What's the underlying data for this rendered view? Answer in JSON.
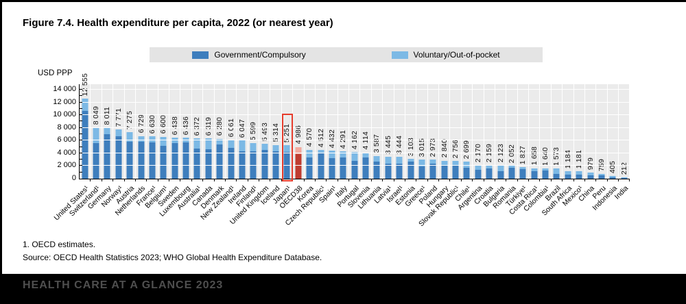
{
  "title": "Figure 7.4. Health expenditure per capita, 2022 (or nearest year)",
  "axis_unit": "USD PPP",
  "footnote": "1. OECD estimates.",
  "source": "Source: OECD Health Statistics 2023; WHO Global Health Expenditure Database.",
  "banner": "HEALTH CARE AT A GLANCE 2023",
  "legend": {
    "items": [
      {
        "label": "Government/Compulsory",
        "color": "#3e7ebd"
      },
      {
        "label": "Voluntary/Out-of-pocket",
        "color": "#7cb9e5"
      }
    ]
  },
  "chart_data": {
    "type": "bar",
    "stacked": true,
    "title": "Health expenditure per capita, 2022 (or nearest year)",
    "ylabel": "USD PPP",
    "ylim": [
      0,
      14500
    ],
    "grid": "horizontal-white-on-gray",
    "legend_position": "top-center",
    "ytick_values": [
      0,
      2000,
      4000,
      6000,
      8000,
      10000,
      12000,
      14000
    ],
    "ytick_labels": [
      "0",
      "2 000",
      "4 000",
      "6 000",
      "8 000",
      "10 000",
      "12 000",
      "14 000"
    ],
    "minor_tick_step": 1000,
    "series": [
      {
        "name": "Government/Compulsory",
        "color": "#3e7ebd"
      },
      {
        "name": "Voluntary/Out-of-pocket",
        "color": "#7cb9e5"
      }
    ],
    "colors": {
      "oecd_gov": "#bf3c30",
      "oecd_vol": "#f2a99e",
      "highlight_box": "#e63c2c"
    },
    "countries": [
      {
        "name": "United States¹",
        "value_label": "12 555",
        "total": 12555,
        "gov": 10630
      },
      {
        "name": "Switzerland¹",
        "value_label": "8 049",
        "total": 8049,
        "gov": 5600
      },
      {
        "name": "Germany",
        "value_label": "8 011",
        "total": 8011,
        "gov": 7040
      },
      {
        "name": "Norway¹",
        "value_label": "7 771",
        "total": 7771,
        "gov": 6680
      },
      {
        "name": "Austria",
        "value_label": "7 275",
        "total": 7275,
        "gov": 5820
      },
      {
        "name": "Netherlands",
        "value_label": "6 729",
        "total": 6729,
        "gov": 5780
      },
      {
        "name": "France¹",
        "value_label": "6 630",
        "total": 6630,
        "gov": 5710
      },
      {
        "name": "Belgium¹",
        "value_label": "6 600",
        "total": 6600,
        "gov": 5170
      },
      {
        "name": "Sweden",
        "value_label": "6 438",
        "total": 6438,
        "gov": 5600
      },
      {
        "name": "Luxembourg",
        "value_label": "6 436",
        "total": 6436,
        "gov": 5670
      },
      {
        "name": "Australia¹",
        "value_label": "6 372",
        "total": 6372,
        "gov": 4740
      },
      {
        "name": "Canada",
        "value_label": "6 319",
        "total": 6319,
        "gov": 4630
      },
      {
        "name": "Denmark",
        "value_label": "6 280",
        "total": 6280,
        "gov": 5350
      },
      {
        "name": "New Zealand¹",
        "value_label": "6 061",
        "total": 6061,
        "gov": 4810
      },
      {
        "name": "Ireland",
        "value_label": "6 047",
        "total": 6047,
        "gov": 4350
      },
      {
        "name": "Finland¹",
        "value_label": "5 599",
        "total": 5599,
        "gov": 4350
      },
      {
        "name": "United Kingdom",
        "value_label": "5 493",
        "total": 5493,
        "gov": 4560
      },
      {
        "name": "Iceland",
        "value_label": "5 314",
        "total": 5314,
        "gov": 4270
      },
      {
        "name": "Japan¹",
        "value_label": "5 251",
        "total": 5251,
        "gov": 4170,
        "highlight": true
      },
      {
        "name": "OECD38",
        "value_label": "4 986",
        "total": 4986,
        "gov": 3840,
        "oecd": true
      },
      {
        "name": "Korea",
        "value_label": "4 570",
        "total": 4570,
        "gov": 3300
      },
      {
        "name": "Czech Republic¹",
        "value_label": "4 512",
        "total": 4512,
        "gov": 4020
      },
      {
        "name": "Spain¹",
        "value_label": "4 432",
        "total": 4432,
        "gov": 3270
      },
      {
        "name": "Italy",
        "value_label": "4 291",
        "total": 4291,
        "gov": 3380
      },
      {
        "name": "Portugal",
        "value_label": "4 162",
        "total": 4162,
        "gov": 2770
      },
      {
        "name": "Slovenia",
        "value_label": "4 114",
        "total": 4114,
        "gov": 3380
      },
      {
        "name": "Lithuania",
        "value_label": "3 587",
        "total": 3587,
        "gov": 2660
      },
      {
        "name": "Latvia¹",
        "value_label": "3 445",
        "total": 3445,
        "gov": 2370
      },
      {
        "name": "Israel¹",
        "value_label": "3 444",
        "total": 3444,
        "gov": 2340
      },
      {
        "name": "Estonia",
        "value_label": "3 103",
        "total": 3103,
        "gov": 2700
      },
      {
        "name": "Greece¹",
        "value_label": "3 015",
        "total": 3015,
        "gov": 1940
      },
      {
        "name": "Poland",
        "value_label": "2 973",
        "total": 2973,
        "gov": 2400
      },
      {
        "name": "Hungary",
        "value_label": "2 840",
        "total": 2840,
        "gov": 2120
      },
      {
        "name": "Slovak Republic¹",
        "value_label": "2 756",
        "total": 2756,
        "gov": 2190
      },
      {
        "name": "Chile¹",
        "value_label": "2 699",
        "total": 2699,
        "gov": 1760
      },
      {
        "name": "Argentina",
        "value_label": "2 170",
        "total": 2170,
        "gov": 1400
      },
      {
        "name": "Croatia",
        "value_label": "2 159",
        "total": 2159,
        "gov": 1580
      },
      {
        "name": "Bulgaria",
        "value_label": "2 123",
        "total": 2123,
        "gov": 1220
      },
      {
        "name": "Romania",
        "value_label": "2 052",
        "total": 2052,
        "gov": 1690
      },
      {
        "name": "Türkiye¹",
        "value_label": "1 827",
        "total": 1827,
        "gov": 1540
      },
      {
        "name": "Costa Rica¹",
        "value_label": "1 658",
        "total": 1658,
        "gov": 1220
      },
      {
        "name": "Colombia¹",
        "value_label": "1 640",
        "total": 1640,
        "gov": 1330
      },
      {
        "name": "Brazil",
        "value_label": "1 573",
        "total": 1573,
        "gov": 790
      },
      {
        "name": "South Africa",
        "value_label": "1 184",
        "total": 1184,
        "gov": 610
      },
      {
        "name": "Mexico¹",
        "value_label": "1 181",
        "total": 1181,
        "gov": 600
      },
      {
        "name": "China",
        "value_label": "979",
        "total": 979,
        "gov": 540
      },
      {
        "name": "Peru",
        "value_label": "759",
        "total": 759,
        "gov": 500
      },
      {
        "name": "Indonesia",
        "value_label": "405",
        "total": 405,
        "gov": 220
      },
      {
        "name": "India",
        "value_label": "212",
        "total": 212,
        "gov": 85
      }
    ]
  }
}
